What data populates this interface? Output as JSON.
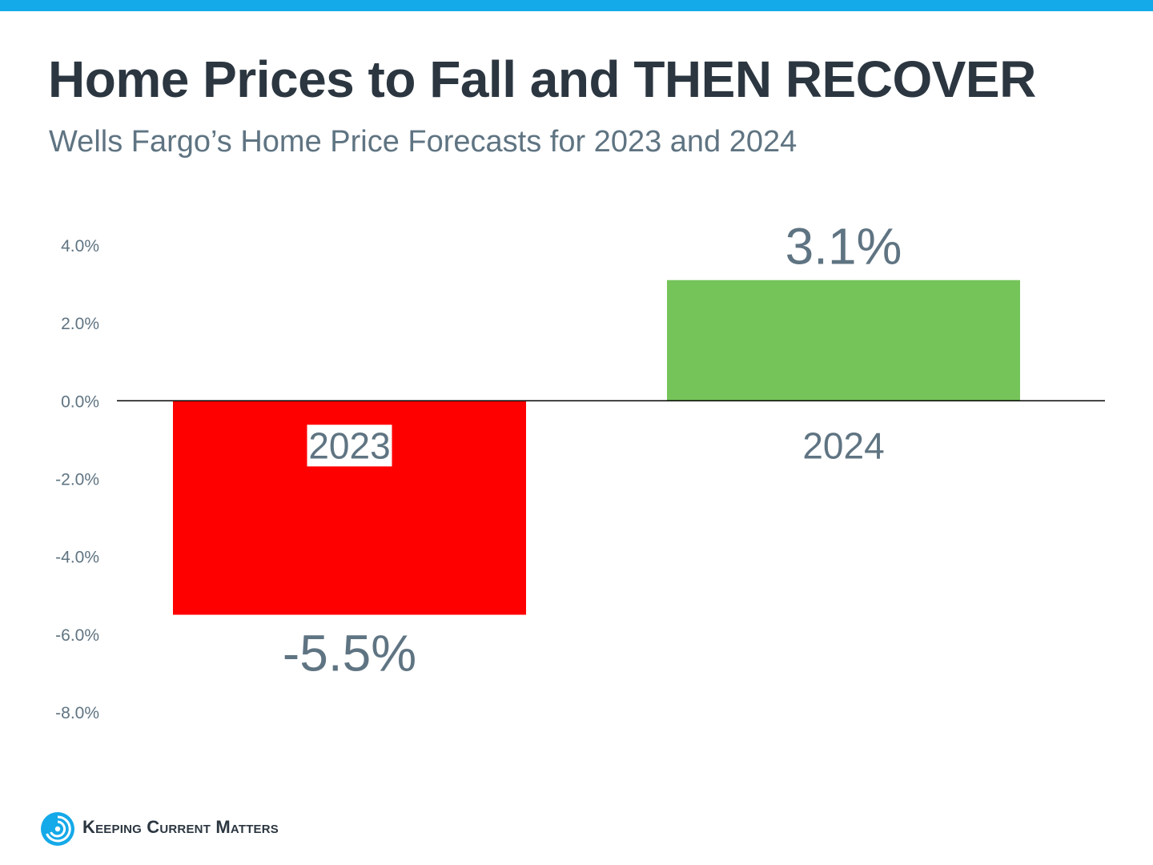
{
  "header": {
    "title": "Home Prices to Fall and THEN RECOVER",
    "subtitle": "Wells Fargo’s Home Price Forecasts for 2023 and 2024"
  },
  "footer": {
    "brand": "Keeping Current Matters",
    "logo_icon": "swirl-logo-icon"
  },
  "colors": {
    "top_bar": "#14a9e8",
    "negative_bar": "#ff0000",
    "positive_bar": "#75c45a",
    "text_dark": "#2b3640",
    "text_muted": "#5f7482",
    "axis_line": "#000000"
  },
  "chart_data": {
    "type": "bar",
    "categories": [
      "2023",
      "2024"
    ],
    "values": [
      -5.5,
      3.1
    ],
    "value_labels": [
      "-5.5%",
      "3.1%"
    ],
    "bar_colors": [
      "#ff0000",
      "#75c45a"
    ],
    "title": "Home Prices to Fall and THEN RECOVER",
    "subtitle": "Wells Fargo’s Home Price Forecasts for 2023 and 2024",
    "xlabel": "",
    "ylabel": "",
    "ylim": [
      -8,
      4
    ],
    "yticks": [
      4,
      2,
      0,
      -2,
      -4,
      -6,
      -8
    ],
    "ytick_labels": [
      "4.0%",
      "2.0%",
      "0.0%",
      "-2.0%",
      "-4.0%",
      "-6.0%",
      "-8.0%"
    ],
    "grid": false,
    "legend": "none"
  }
}
